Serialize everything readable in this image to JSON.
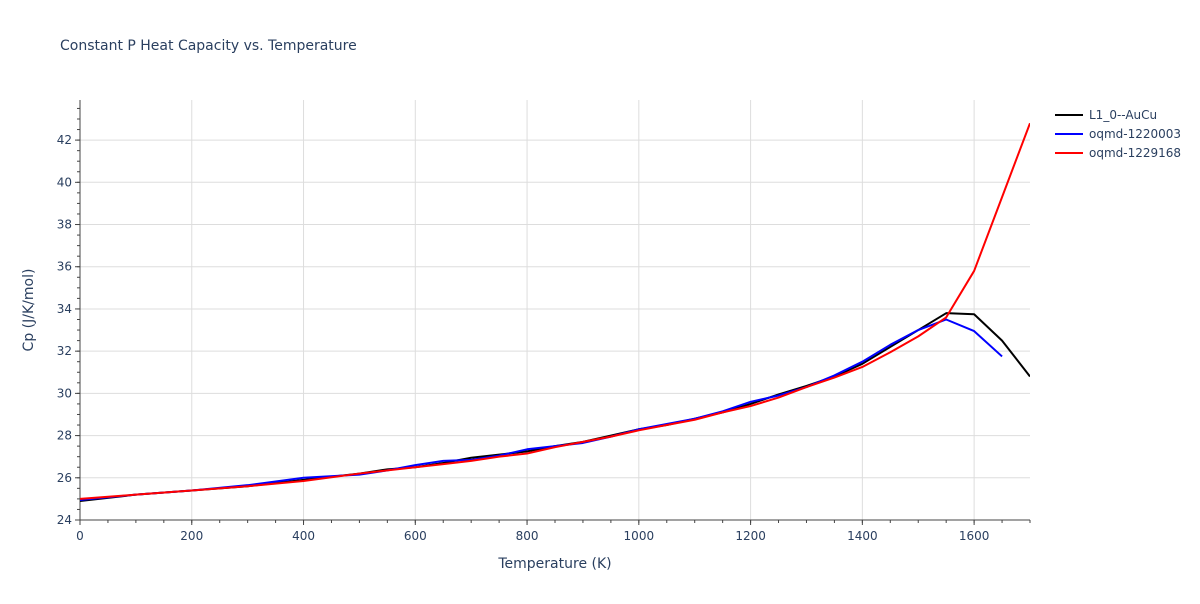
{
  "chart_data": {
    "type": "line",
    "title": "Constant P Heat Capacity vs. Temperature",
    "xlabel": "Temperature (K)",
    "ylabel": "Cp (J/K/mol)",
    "xlim": [
      0,
      1700
    ],
    "ylim": [
      24,
      43.9
    ],
    "x_ticks": [
      0,
      200,
      400,
      600,
      800,
      1000,
      1200,
      1400,
      1600
    ],
    "y_ticks": [
      24,
      26,
      28,
      30,
      32,
      34,
      36,
      38,
      40,
      42
    ],
    "grid": true,
    "legend_position": "top-right",
    "series": [
      {
        "name": "L1_0--AuCu",
        "color": "#000000",
        "x": [
          0,
          100,
          200,
          300,
          400,
          500,
          550,
          600,
          650,
          700,
          750,
          800,
          850,
          900,
          950,
          1000,
          1050,
          1100,
          1150,
          1200,
          1250,
          1300,
          1350,
          1400,
          1450,
          1500,
          1550,
          1600,
          1650,
          1700
        ],
        "y": [
          24.9,
          25.2,
          25.4,
          25.6,
          25.9,
          26.2,
          26.4,
          26.5,
          26.7,
          26.95,
          27.1,
          27.25,
          27.5,
          27.7,
          28.0,
          28.3,
          28.5,
          28.8,
          29.1,
          29.5,
          29.95,
          30.35,
          30.8,
          31.4,
          32.2,
          33.0,
          33.8,
          33.75,
          32.5,
          30.8
        ]
      },
      {
        "name": "oqmd-1220003",
        "color": "#0000ff",
        "x": [
          0,
          100,
          200,
          300,
          400,
          500,
          550,
          600,
          650,
          700,
          750,
          800,
          850,
          900,
          950,
          1000,
          1050,
          1100,
          1150,
          1200,
          1250,
          1300,
          1350,
          1400,
          1450,
          1500,
          1550,
          1600,
          1650
        ],
        "y": [
          24.95,
          25.2,
          25.4,
          25.65,
          26.0,
          26.15,
          26.35,
          26.6,
          26.8,
          26.85,
          27.05,
          27.35,
          27.5,
          27.65,
          27.95,
          28.3,
          28.55,
          28.8,
          29.15,
          29.6,
          29.9,
          30.3,
          30.85,
          31.5,
          32.3,
          33.0,
          33.5,
          32.95,
          31.75
        ]
      },
      {
        "name": "oqmd-1229168",
        "color": "#ff0000",
        "x": [
          0,
          100,
          200,
          300,
          400,
          500,
          550,
          600,
          650,
          700,
          750,
          800,
          850,
          900,
          950,
          1000,
          1050,
          1100,
          1150,
          1200,
          1250,
          1300,
          1350,
          1400,
          1450,
          1500,
          1550,
          1600,
          1650,
          1700
        ],
        "y": [
          25.0,
          25.2,
          25.4,
          25.6,
          25.85,
          26.2,
          26.35,
          26.5,
          26.65,
          26.8,
          27.0,
          27.15,
          27.45,
          27.7,
          27.95,
          28.25,
          28.5,
          28.75,
          29.1,
          29.4,
          29.8,
          30.3,
          30.75,
          31.25,
          31.95,
          32.7,
          33.6,
          35.8,
          39.3,
          42.8
        ]
      }
    ]
  }
}
